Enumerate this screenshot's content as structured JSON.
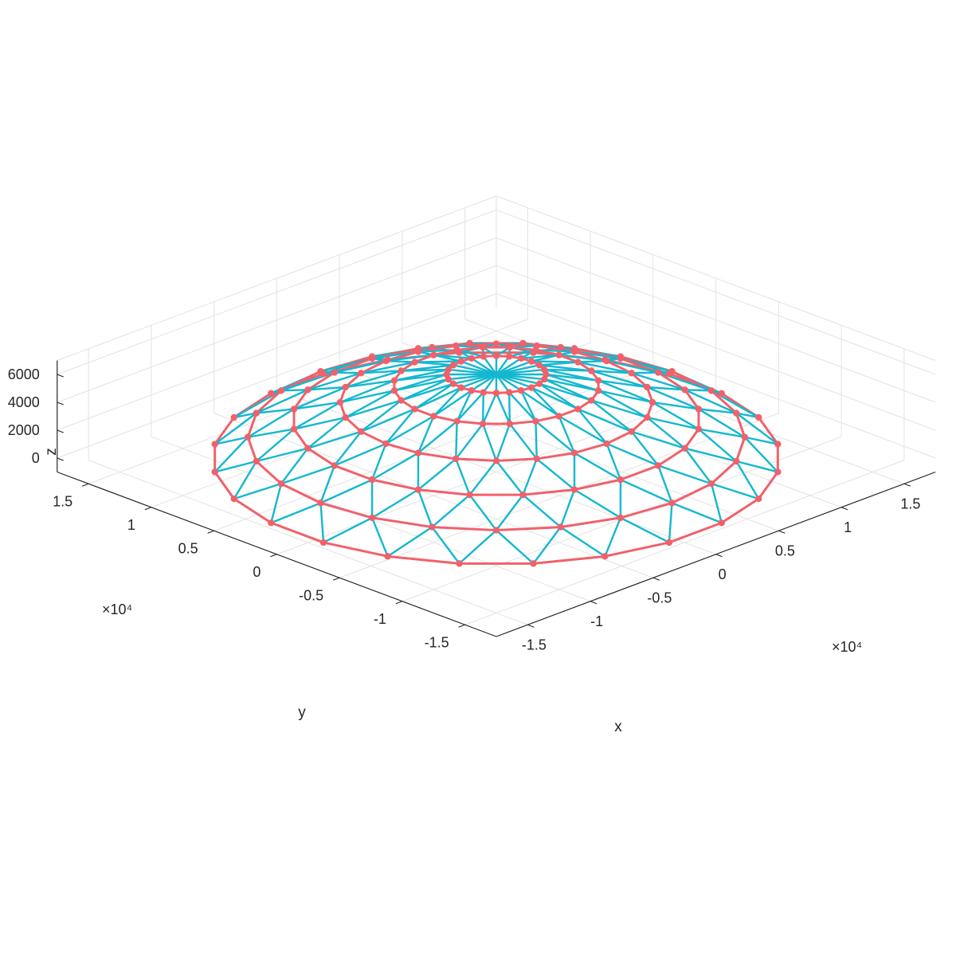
{
  "chart_data": {
    "type": "wireframe-3d",
    "title": "",
    "xlabel": "x",
    "ylabel": "y",
    "zlabel": "z",
    "x_exponent_label": "×10⁴",
    "y_exponent_label": "×10⁴",
    "xlim": [
      -1.75,
      1.75
    ],
    "ylim": [
      -1.75,
      1.75
    ],
    "zlim": [
      -1000,
      7000
    ],
    "x_ticks": [
      {
        "value": -1.5,
        "label": "-1.5"
      },
      {
        "value": -1,
        "label": "-1"
      },
      {
        "value": -0.5,
        "label": "-0.5"
      },
      {
        "value": 0,
        "label": "0"
      },
      {
        "value": 0.5,
        "label": "0.5"
      },
      {
        "value": 1,
        "label": "1"
      },
      {
        "value": 1.5,
        "label": "1.5"
      }
    ],
    "y_ticks": [
      {
        "value": -1.5,
        "label": "-1.5"
      },
      {
        "value": -1,
        "label": "-1"
      },
      {
        "value": -0.5,
        "label": "-0.5"
      },
      {
        "value": 0,
        "label": "0"
      },
      {
        "value": 0.5,
        "label": "0.5"
      },
      {
        "value": 1,
        "label": "1"
      },
      {
        "value": 1.5,
        "label": "1.5"
      }
    ],
    "z_ticks": [
      {
        "value": 0,
        "label": "0"
      },
      {
        "value": 2000,
        "label": "2000"
      },
      {
        "value": 4000,
        "label": "4000"
      },
      {
        "value": 6000,
        "label": "6000"
      }
    ],
    "grid": true,
    "dome": {
      "radius": 1.6,
      "segments": 24,
      "rings": [
        {
          "r": 0.28,
          "z": 6000
        },
        {
          "r": 0.58,
          "z": 5200
        },
        {
          "r": 0.88,
          "z": 4000
        },
        {
          "r": 1.15,
          "z": 2800
        },
        {
          "r": 1.4,
          "z": 1500
        },
        {
          "r": 1.6,
          "z": 0
        }
      ],
      "apex_z": 6000
    },
    "colors": {
      "ring_members": "#f0616b",
      "diagonal_members": "#13b8cf",
      "nodes": "#f0616b"
    }
  }
}
